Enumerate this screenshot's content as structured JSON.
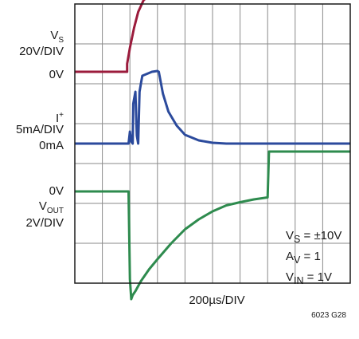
{
  "chart_data": {
    "type": "line",
    "xlabel": "200µs/DIV",
    "figure_id": "6023 G28",
    "grid": true,
    "x_divisions": 10,
    "y_divisions": 7,
    "channels": [
      {
        "name_main": "V",
        "name_sub": "S",
        "scale": "20V/DIV",
        "ground": "0V",
        "color": "#9b1b3c"
      },
      {
        "name_main": "I",
        "name_sup": "+",
        "scale": "5mA/DIV",
        "ground": "0mA",
        "color": "#2b4a9c"
      },
      {
        "name_main": "V",
        "name_sub": "OUT",
        "scale": "2V/DIV",
        "ground": "0V",
        "color": "#2e8b4e"
      }
    ],
    "series": [
      {
        "name": "VS",
        "x": [
          0,
          1.9,
          1.9,
          2.0,
          2.15,
          2.3,
          2.5,
          2.8,
          3.2,
          3.6,
          4.2,
          10
        ],
        "y": [
          0,
          0,
          0.2,
          0.6,
          1.1,
          1.5,
          1.8,
          1.94,
          1.99,
          2.0,
          2.0,
          2.0
        ]
      },
      {
        "name": "I+",
        "x": [
          0,
          1.95,
          2.0,
          2.05,
          2.1,
          2.12,
          2.2,
          2.25,
          2.3,
          2.35,
          2.4,
          2.45,
          2.8,
          3.0,
          3.05,
          3.2,
          3.4,
          3.7,
          4.0,
          4.5,
          5.0,
          5.5,
          10
        ],
        "y": [
          0,
          0,
          0.3,
          0.05,
          0,
          1.0,
          1.3,
          0.2,
          0,
          1.3,
          1.5,
          1.7,
          1.8,
          1.82,
          1.8,
          1.25,
          0.8,
          0.45,
          0.22,
          0.08,
          0.02,
          0,
          0
        ]
      },
      {
        "name": "VOUT",
        "x": [
          0,
          1.95,
          2.0,
          2.05,
          2.1,
          2.2,
          2.4,
          2.7,
          3.0,
          3.5,
          4.0,
          4.5,
          5.0,
          5.5,
          6.0,
          6.5,
          7.0,
          7.05,
          7.1,
          10
        ],
        "y": [
          0,
          0,
          -2.2,
          -2.7,
          -2.6,
          -2.5,
          -2.25,
          -1.95,
          -1.7,
          -1.3,
          -0.95,
          -0.7,
          -0.5,
          -0.35,
          -0.27,
          -0.2,
          -0.15,
          1.0,
          1.0,
          1.0
        ]
      }
    ],
    "conditions": [
      {
        "main": "V",
        "sub": "S",
        "rest": " = ±10V"
      },
      {
        "main": "A",
        "sub": "V",
        "rest": " = 1"
      },
      {
        "main": "V",
        "sub": "IN",
        "rest": " = 1V"
      }
    ]
  }
}
